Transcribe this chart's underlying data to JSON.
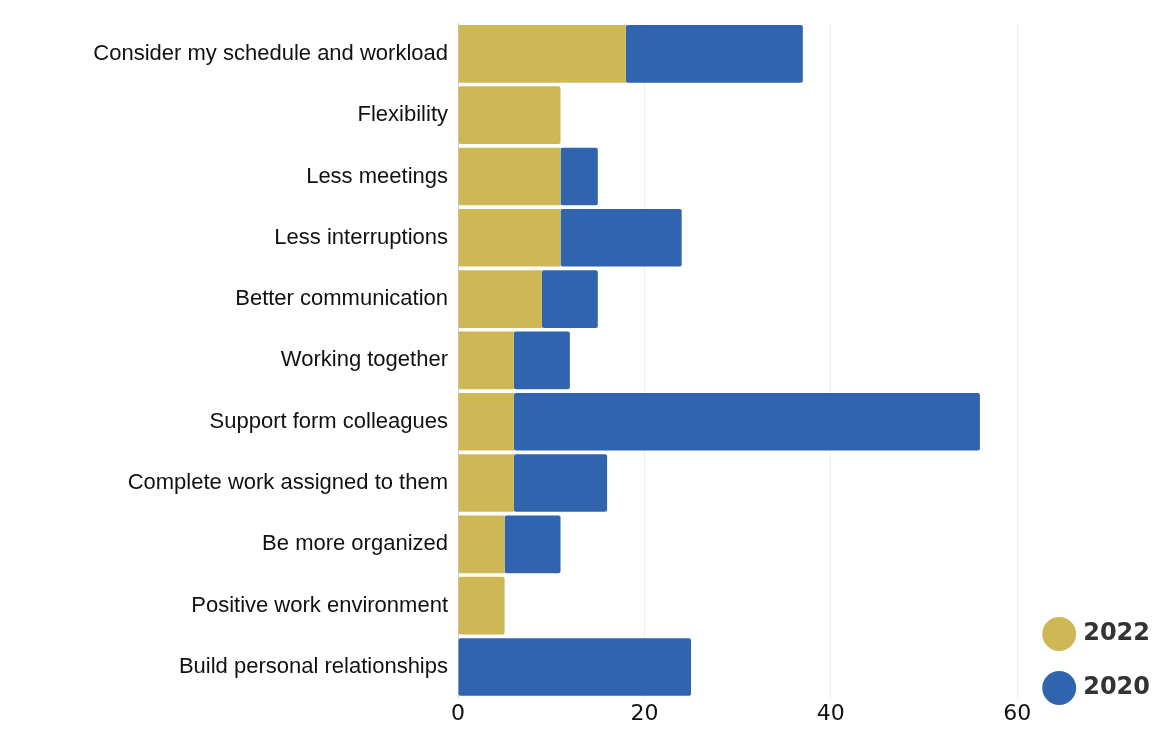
{
  "chart_data": {
    "type": "bar",
    "orientation": "horizontal",
    "stacked": true,
    "categories": [
      "Consider my schedule and workload",
      "Flexibility",
      "Less meetings",
      "Less interruptions",
      "Better communication",
      "Working together",
      "Support form colleagues",
      "Complete work assigned to them",
      "Be more organized",
      "Positive work environment",
      "Build personal relationships"
    ],
    "series": [
      {
        "name": "2022",
        "color": "#cdb855",
        "values": [
          18,
          11,
          11,
          11,
          9,
          6,
          6,
          6,
          5,
          5,
          0
        ]
      },
      {
        "name": "2020",
        "color": "#3164ae",
        "values": [
          19,
          0,
          4,
          13,
          6,
          6,
          50,
          10,
          6,
          0,
          25
        ]
      }
    ],
    "xlim": [
      0,
      60
    ],
    "xticks": [
      0,
      20,
      40,
      60
    ],
    "grid": "x",
    "legend": "bottom right"
  }
}
